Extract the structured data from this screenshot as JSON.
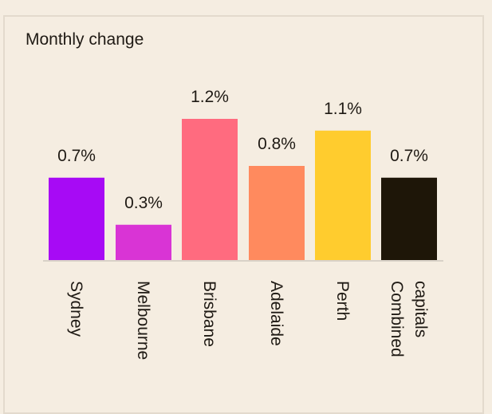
{
  "chart_data": {
    "type": "bar",
    "title": "Monthly change",
    "categories": [
      [
        "Sydney"
      ],
      [
        "Melbourne"
      ],
      [
        "Brisbane"
      ],
      [
        "Adelaide"
      ],
      [
        "Perth"
      ],
      [
        "Combined",
        "capitals"
      ]
    ],
    "values": [
      0.7,
      0.3,
      1.2,
      0.8,
      1.1,
      0.7
    ],
    "value_labels": [
      "0.7%",
      "0.3%",
      "1.2%",
      "0.8%",
      "1.1%",
      "0.7%"
    ],
    "colors": [
      "#a70af5",
      "#d934d5",
      "#ff6b7f",
      "#ff8a5e",
      "#ffcc2e",
      "#1e1608"
    ],
    "ylim": [
      0,
      1.2
    ],
    "grid": false,
    "legend": "none"
  }
}
